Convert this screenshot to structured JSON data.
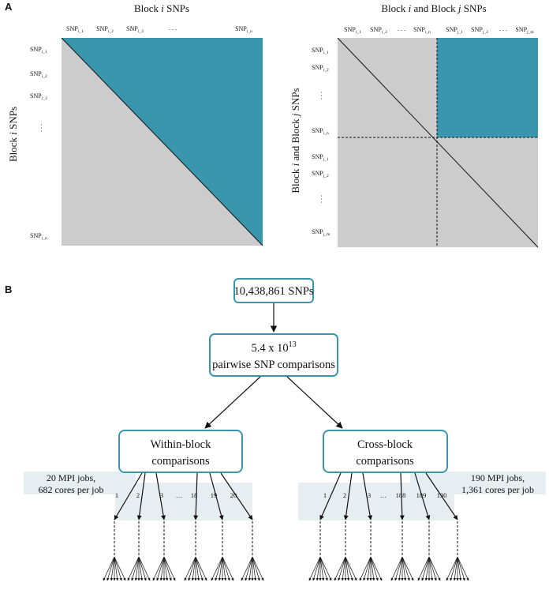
{
  "panel_a": {
    "letter": "A",
    "left": {
      "title_pre": "Block ",
      "title_var": "i",
      "title_post": " SNPs",
      "y_label_pre": "Block ",
      "y_label_var": "i",
      "y_label_post": " SNPs",
      "cols": [
        {
          "base": "SNP",
          "sub": "i_1"
        },
        {
          "base": "SNP",
          "sub": "i_2"
        },
        {
          "base": "SNP",
          "sub": "i_3"
        },
        {
          "base": "SNP",
          "sub": "i_n"
        }
      ],
      "rows": [
        {
          "base": "SNP",
          "sub": "i_1"
        },
        {
          "base": "SNP",
          "sub": "i_2"
        },
        {
          "base": "SNP",
          "sub": "i_3"
        },
        {
          "base": "SNP",
          "sub": "i_n"
        }
      ],
      "col_ellipsis": ". . .",
      "row_ellipsis": ". . ."
    },
    "right": {
      "title_pre": "Block ",
      "title_var_1": "i",
      "title_mid": " and Block ",
      "title_var_2": "j",
      "title_post": " SNPs",
      "y_label_pre": "Block ",
      "y_label_var_1": "i",
      "y_label_mid": " and Block ",
      "y_label_var_2": "j",
      "y_label_post": " SNPs",
      "cols": [
        {
          "base": "SNP",
          "sub": "i_1"
        },
        {
          "base": "SNP",
          "sub": "i_2"
        },
        {
          "base": "SNP",
          "sub": "i_n"
        },
        {
          "base": "SNP",
          "sub": "j_1"
        },
        {
          "base": "SNP",
          "sub": "j_2"
        },
        {
          "base": "SNP",
          "sub": "j_m"
        }
      ],
      "rows": [
        {
          "base": "SNP",
          "sub": "i_1"
        },
        {
          "base": "SNP",
          "sub": "i_2"
        },
        {
          "base": "SNP",
          "sub": "i_n"
        },
        {
          "base": "SNP",
          "sub": "j_1"
        },
        {
          "base": "SNP",
          "sub": "j_2"
        },
        {
          "base": "SNP",
          "sub": "j_m"
        }
      ],
      "col_ellipsis": ". . .",
      "row_ellipsis": ". . ."
    }
  },
  "panel_b": {
    "letter": "B",
    "snps_box": "10,438,861 SNPs",
    "comparisons_box": {
      "line1_pre": "5.4 x 10",
      "line1_sup": "13",
      "line2": "pairwise SNP comparisons"
    },
    "within_box": {
      "line1": "Within-block",
      "line2": "comparisons"
    },
    "cross_box": {
      "line1": "Cross-block",
      "line2": "comparisons"
    },
    "within_jobs": {
      "line1": "20 MPI jobs,",
      "line2": "682 cores per job"
    },
    "cross_jobs": {
      "line1": "190 MPI jobs,",
      "line2": "1,361 cores per job"
    },
    "within_branches": [
      "1",
      "2",
      "3",
      "…",
      "18",
      "19",
      "20"
    ],
    "cross_branches": [
      "1",
      "2",
      "3",
      "…",
      "188",
      "189",
      "190"
    ]
  },
  "colors": {
    "teal": "#3a96ad",
    "gray": "#cccccc",
    "job_bg": "#e6eef2"
  }
}
